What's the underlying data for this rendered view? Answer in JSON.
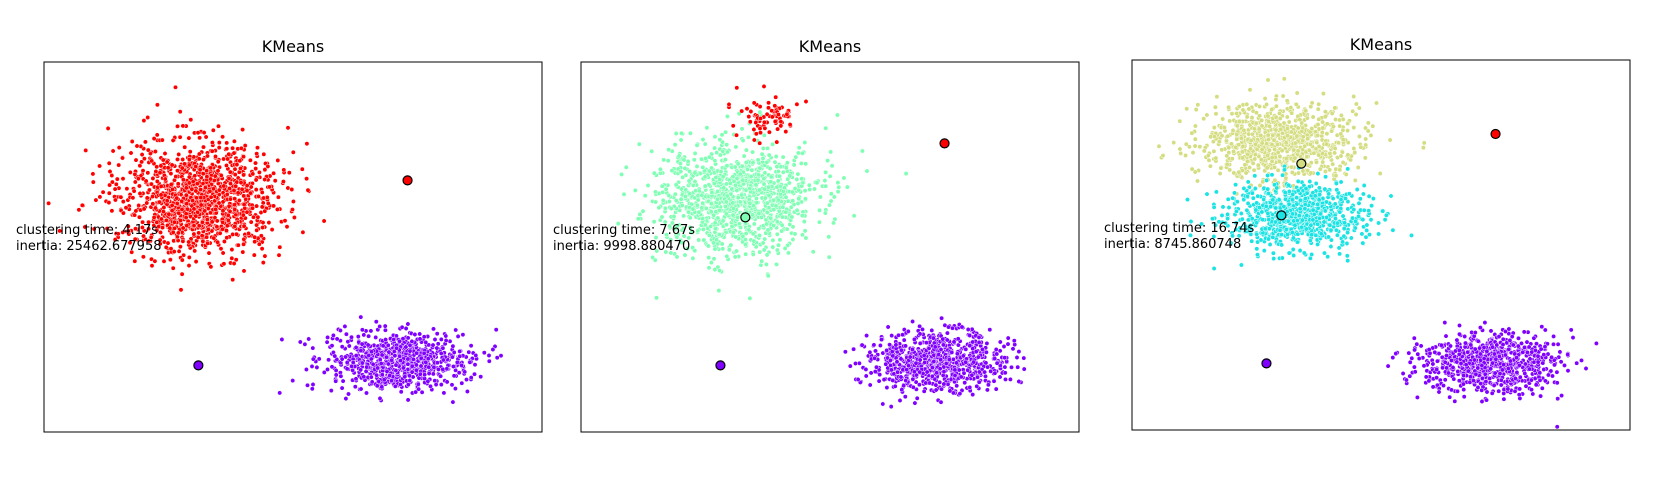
{
  "chart_data": [
    {
      "type": "scatter",
      "title": "KMeans",
      "xlabel": "",
      "ylabel": "",
      "grid": false,
      "ticks": false,
      "xlim": [
        0,
        100
      ],
      "ylim": [
        0,
        100
      ],
      "annotation": [
        "clustering time: 4.17s",
        "inertia: 25462.677958"
      ],
      "clusters": [
        {
          "color": "#ff0000",
          "center": [
            31,
            37
          ],
          "spread": [
            8,
            7.5
          ],
          "n": 1300
        },
        {
          "color": "#8000ff",
          "center": [
            71,
            81
          ],
          "spread": [
            7,
            4
          ],
          "n": 800
        }
      ],
      "centroids": [
        {
          "x": 73,
          "y": 32,
          "color": "#ff0000"
        },
        {
          "x": 31,
          "y": 82,
          "color": "#8000ff"
        }
      ]
    },
    {
      "type": "scatter",
      "title": "KMeans",
      "xlabel": "",
      "ylabel": "",
      "grid": false,
      "ticks": false,
      "xlim": [
        0,
        100
      ],
      "ylim": [
        0,
        100
      ],
      "annotation": [
        "clustering time: 7.67s",
        "inertia: 9998.880470"
      ],
      "clusters": [
        {
          "color": "#80ffb4",
          "center": [
            31,
            37
          ],
          "spread": [
            8,
            7.5
          ],
          "n": 1200
        },
        {
          "color": "#ff0000",
          "center": [
            38,
            15
          ],
          "spread": [
            3,
            3
          ],
          "n": 80
        },
        {
          "color": "#8000ff",
          "center": [
            71,
            81
          ],
          "spread": [
            7,
            4
          ],
          "n": 800
        }
      ],
      "centroids": [
        {
          "x": 73,
          "y": 22,
          "color": "#ff0000"
        },
        {
          "x": 33,
          "y": 42,
          "color": "#80ffb4"
        },
        {
          "x": 28,
          "y": 82,
          "color": "#8000ff"
        }
      ]
    },
    {
      "type": "scatter",
      "title": "KMeans",
      "xlabel": "",
      "ylabel": "",
      "grid": false,
      "ticks": false,
      "xlim": [
        0,
        100
      ],
      "ylim": [
        0,
        100
      ],
      "annotation": [
        "clustering time: 16.74s",
        "inertia: 8745.860748"
      ],
      "clusters": [
        {
          "color": "#d4dd80",
          "center": [
            30,
            22
          ],
          "spread": [
            8,
            5
          ],
          "n": 900
        },
        {
          "color": "#1ae3e3",
          "center": [
            33,
            42
          ],
          "spread": [
            7,
            4.5
          ],
          "n": 800
        },
        {
          "color": "#8000ff",
          "center": [
            72,
            82
          ],
          "spread": [
            7,
            4
          ],
          "n": 800
        }
      ],
      "centroids": [
        {
          "x": 73,
          "y": 20,
          "color": "#ff0000"
        },
        {
          "x": 34,
          "y": 28,
          "color": "#d4dd80"
        },
        {
          "x": 30,
          "y": 42,
          "color": "#1ae3e3"
        },
        {
          "x": 27,
          "y": 82,
          "color": "#8000ff"
        }
      ]
    }
  ]
}
